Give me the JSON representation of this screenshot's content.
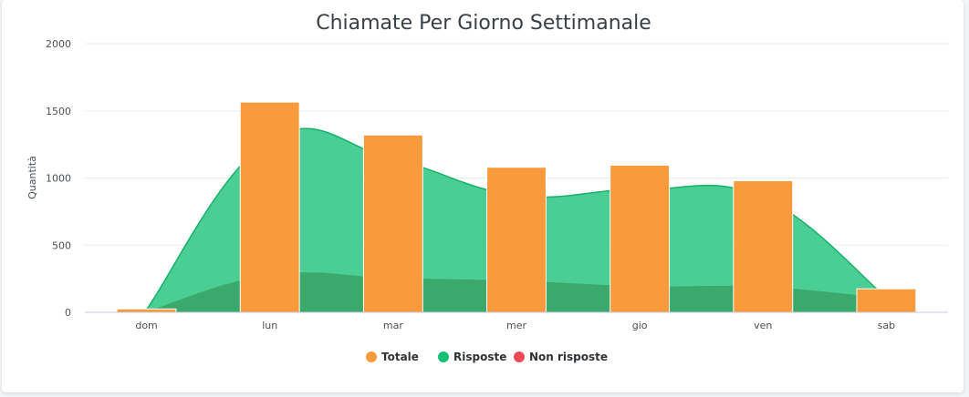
{
  "chart_data": {
    "type": "bar",
    "title": "Chiamate Per Giorno Settimanale",
    "xlabel": "",
    "ylabel": "Quantità",
    "ylim": [
      0,
      2000
    ],
    "yticks": [
      0,
      500,
      1000,
      1500,
      2000
    ],
    "categories": [
      "dom",
      "lun",
      "mar",
      "mer",
      "gio",
      "ven",
      "sab"
    ],
    "grid": true,
    "legend_position": "bottom-center",
    "series": [
      {
        "name": "Totale",
        "kind": "bar",
        "color": "#f99a3c",
        "values": [
          25,
          1565,
          1320,
          1080,
          1095,
          980,
          175
        ]
      },
      {
        "name": "Risposte",
        "kind": "area",
        "color": "#18c074",
        "values": [
          20,
          1285,
          1140,
          870,
          915,
          855,
          110
        ]
      },
      {
        "name": "Non risposte",
        "kind": "area",
        "color": "#ef4a5a",
        "values": [
          5,
          280,
          255,
          235,
          195,
          190,
          105
        ]
      }
    ]
  }
}
